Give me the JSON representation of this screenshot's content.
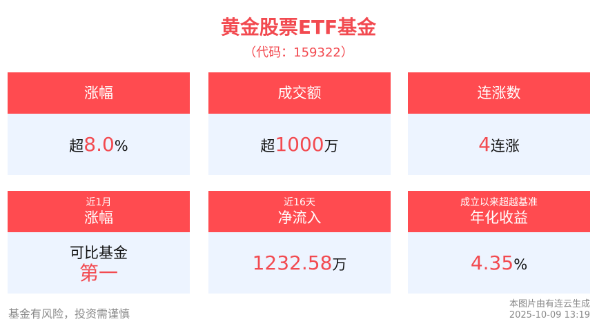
{
  "title": "黄金股票ETF基金",
  "code": "（代码：159322）",
  "cards": [
    {
      "sub": "",
      "label": "涨幅",
      "prefix": "超",
      "value": "8.0",
      "suffix": "%"
    },
    {
      "sub": "",
      "label": "成交额",
      "prefix": "超",
      "value": "1000",
      "suffix": "万"
    },
    {
      "sub": "",
      "label": "连涨数",
      "prefix": "",
      "value": "4",
      "suffix": "连涨"
    },
    {
      "sub": "近1月",
      "label": "涨幅",
      "line1": "可比基金",
      "line2": "第一"
    },
    {
      "sub": "近16天",
      "label": "净流入",
      "prefix": "",
      "value": "1232.58",
      "suffix": "万"
    },
    {
      "sub": "成立以来超越基准",
      "label": "年化收益",
      "prefix": "",
      "value": "4.35",
      "suffix": "%"
    }
  ],
  "footer": {
    "disclaimer": "基金有风险，投资需谨慎",
    "source": "本图片由有连云生成",
    "timestamp": "2025-10-09 13:19"
  },
  "colors": {
    "accent": "#ff4b50",
    "body_bg": "#edf4ff"
  }
}
